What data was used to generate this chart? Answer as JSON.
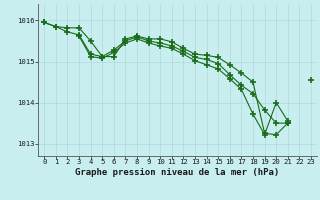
{
  "title": "Graphe pression niveau de la mer (hPa)",
  "background_color": "#c8eef0",
  "grid_color": "#b0d8dc",
  "line_color": "#1a6b1a",
  "marker_color": "#1a6b1a",
  "xlim": [
    -0.5,
    23.5
  ],
  "ylim": [
    1012.7,
    1016.4
  ],
  "yticks": [
    1013,
    1014,
    1015,
    1016
  ],
  "xticks": [
    0,
    1,
    2,
    3,
    4,
    5,
    6,
    7,
    8,
    9,
    10,
    11,
    12,
    13,
    14,
    15,
    16,
    17,
    18,
    19,
    20,
    21,
    22,
    23
  ],
  "s1": [
    1015.95,
    1015.85,
    1015.82,
    1015.82,
    1015.5,
    1015.12,
    1015.12,
    1015.55,
    1015.62,
    1015.55,
    1015.55,
    1015.48,
    1015.32,
    1015.18,
    1015.15,
    1015.1,
    1014.92,
    1014.72,
    1014.5,
    1013.25,
    1013.22,
    1013.5,
    null,
    1014.55
  ],
  "s2": [
    1015.95,
    1015.85,
    1015.72,
    1015.65,
    1015.18,
    1015.12,
    1015.28,
    1015.5,
    1015.6,
    1015.5,
    1015.45,
    1015.38,
    1015.25,
    1015.1,
    1015.05,
    1014.95,
    1014.68,
    1014.42,
    1014.22,
    1013.82,
    1013.5,
    1013.5,
    null,
    null
  ],
  "s3": [
    null,
    null,
    null,
    1015.62,
    1015.12,
    1015.08,
    1015.22,
    1015.45,
    1015.55,
    1015.45,
    1015.38,
    1015.32,
    1015.18,
    1015.02,
    1014.92,
    1014.82,
    1014.58,
    1014.32,
    1013.72,
    1013.22,
    1014.0,
    1013.55,
    null,
    null
  ]
}
